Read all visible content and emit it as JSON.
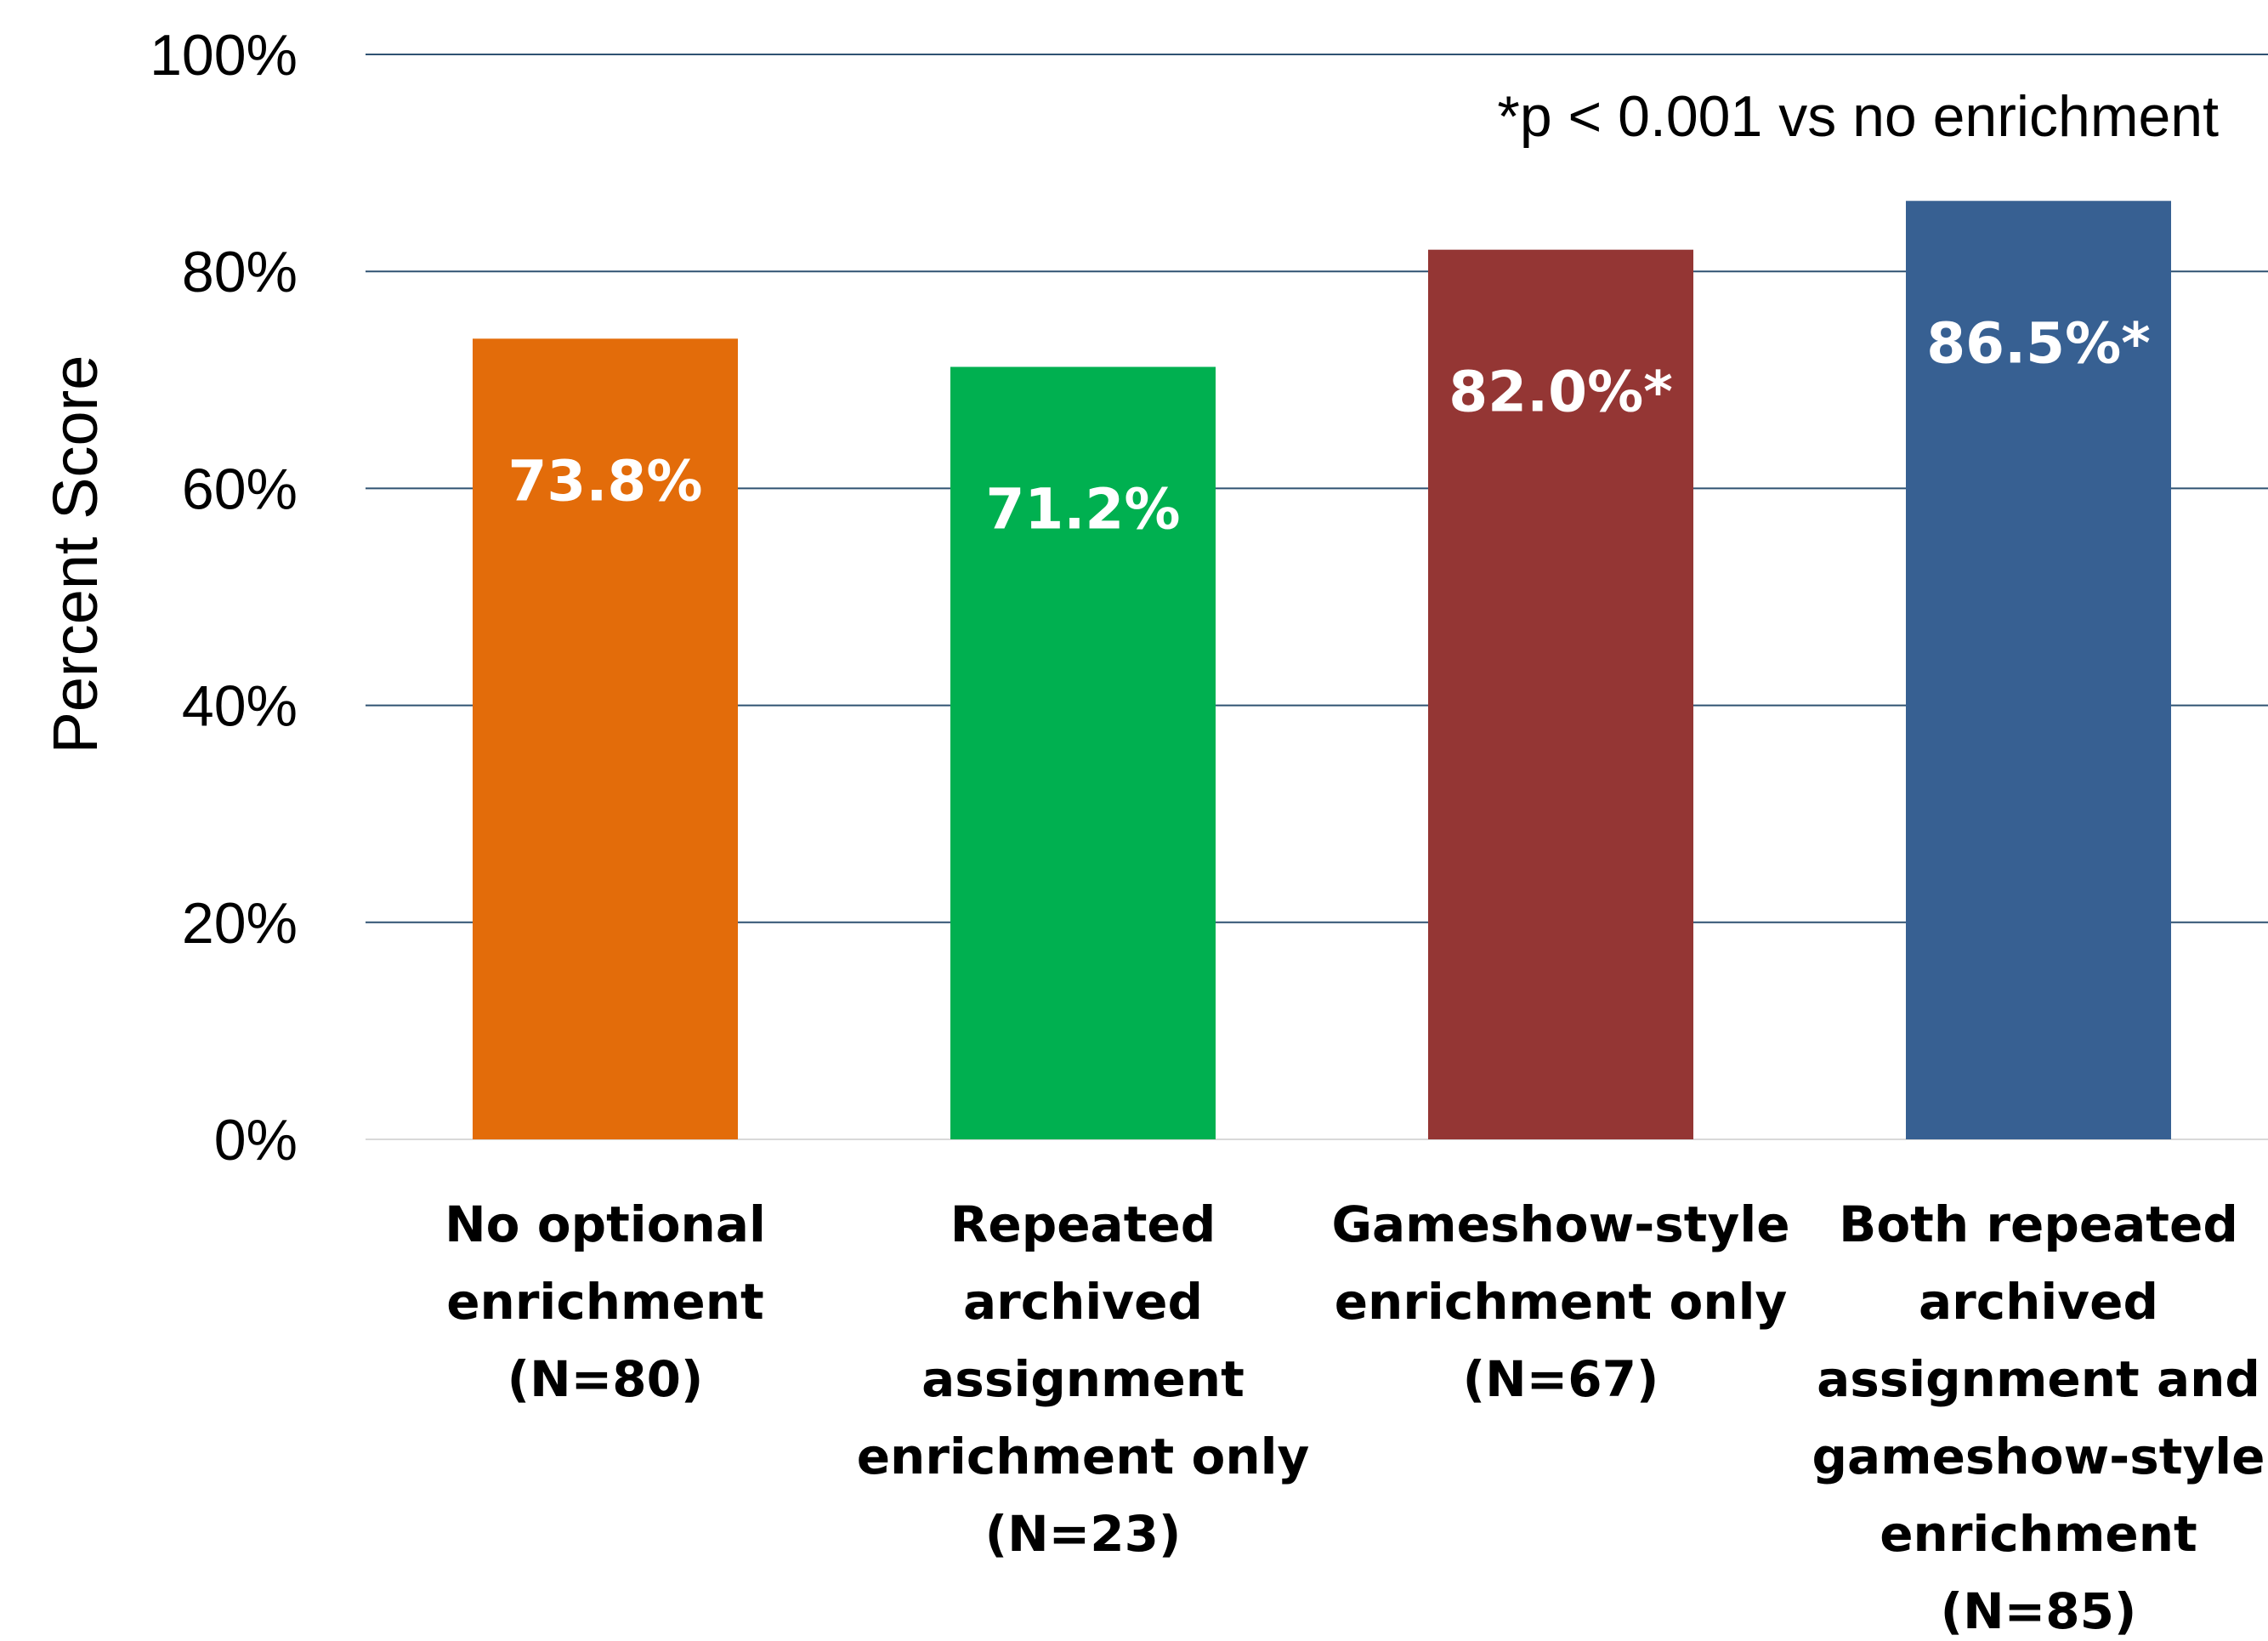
{
  "chart_data": {
    "type": "bar",
    "ylabel": "Percent Score",
    "ylim": [
      0,
      100
    ],
    "yticks": [
      0,
      20,
      40,
      60,
      80,
      100
    ],
    "ytick_labels": [
      "0%",
      "20%",
      "40%",
      "60%",
      "80%",
      "100%"
    ],
    "grid": true,
    "annotation": "*p < 0.001 vs no enrichment",
    "categories": [
      [
        "No optional",
        "enrichment",
        "(N=80)"
      ],
      [
        "Repeated",
        "archived",
        "assignment",
        "enrichment only",
        "(N=23)"
      ],
      [
        "Gameshow-style",
        "enrichment only",
        "(N=67)"
      ],
      [
        "Both repeated",
        "archived",
        "assignment and",
        "gameshow-style",
        "enrichment",
        "(N=85)"
      ]
    ],
    "values": [
      73.8,
      71.2,
      82.0,
      86.5
    ],
    "data_labels": [
      "73.8%",
      "71.2%",
      "82.0%*",
      "86.5%*"
    ],
    "colors": [
      "#E36C0A",
      "#00B050",
      "#943634",
      "#376092"
    ],
    "grid_color": "#2F5272"
  }
}
